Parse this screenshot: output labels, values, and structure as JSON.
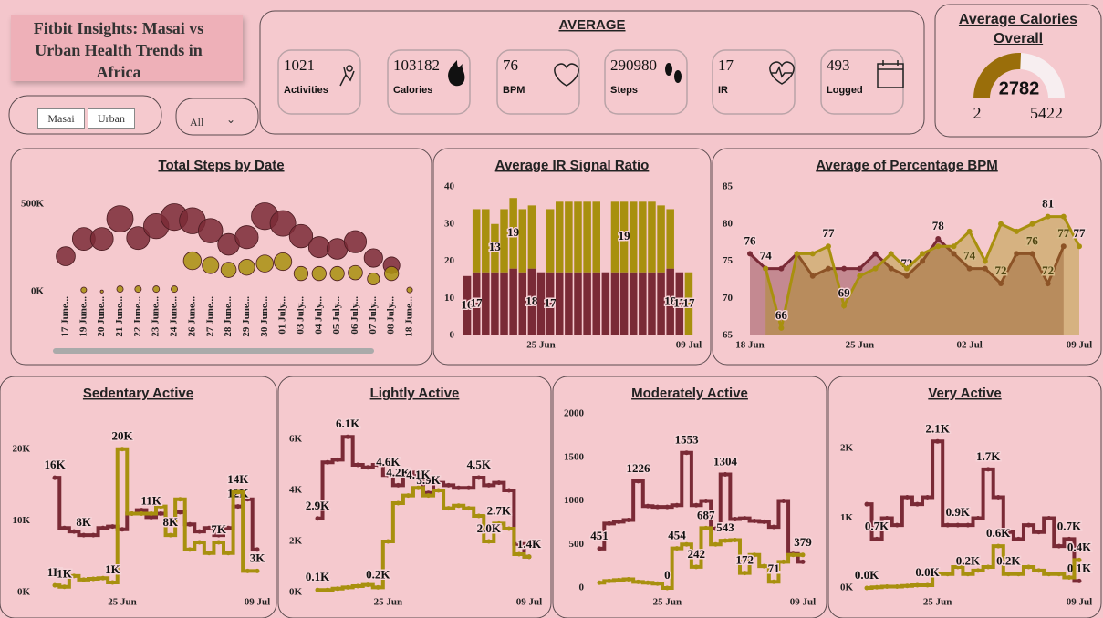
{
  "dashboard_title": "Fitbit Insights: Masai vs Urban Health Trends in Africa",
  "slicer": {
    "options": [
      "Masai",
      "Urban"
    ]
  },
  "dropdown": "All",
  "average": {
    "title": "AVERAGE",
    "kpis": [
      {
        "value": 1021,
        "label": "Activities"
      },
      {
        "value": 103182,
        "label": "Calories"
      },
      {
        "value": 76,
        "label": "BPM"
      },
      {
        "value": 290980,
        "label": "Steps"
      },
      {
        "value": 17,
        "label": "IR"
      },
      {
        "value": 493,
        "label": "Logged"
      }
    ]
  },
  "gauge": {
    "title": "Average Calories Overall",
    "value": 2782,
    "min": 2,
    "max": 5422
  },
  "chart_data": [
    {
      "type": "bubble",
      "title": "Total Steps by Date",
      "categories": [
        "17 June...",
        "19 June...",
        "20 June...",
        "21 June...",
        "22 June...",
        "23 June...",
        "24 June...",
        "26 June...",
        "27 June...",
        "28 June...",
        "29 June...",
        "30 June...",
        "01 July...",
        "03 July...",
        "04 July...",
        "05 July...",
        "06 July...",
        "07 July...",
        "08 July...",
        "18 June..."
      ],
      "series": [
        {
          "color": "#7a2a36",
          "values": [
            203000,
            302000,
            302000,
            417000,
            307000,
            375000,
            427000,
            406000,
            349000,
            271000,
            312000,
            432000,
            391000,
            318000,
            255000,
            245000,
            286000,
            193000,
            151000,
            null
          ]
        },
        {
          "color": "#a8900e",
          "values": [
            null,
            10000,
            1000,
            15000,
            15000,
            15000,
            15000,
            177000,
            151000,
            125000,
            140000,
            161000,
            172000,
            104000,
            104000,
            104000,
            109000,
            73000,
            104000,
            10000
          ]
        }
      ],
      "ylim": [
        0,
        600000
      ],
      "yticks": [
        {
          "value": 0,
          "label": "0K"
        },
        {
          "value": 500000,
          "label": "500K"
        }
      ]
    },
    {
      "type": "bar",
      "stacked": true,
      "title": "Average IR Signal Ratio",
      "categories": [
        null,
        null,
        null,
        null,
        null,
        null,
        null,
        null,
        "25 Jun",
        null,
        null,
        null,
        null,
        null,
        null,
        null,
        null,
        null,
        null,
        null,
        null,
        null,
        null,
        null,
        "09 Jul"
      ],
      "series": [
        {
          "color": "#7a2a36",
          "values": [
            16,
            17,
            17,
            17,
            17,
            18,
            17,
            18,
            17,
            17,
            17,
            17,
            17,
            17,
            17,
            17,
            17,
            17,
            17,
            17,
            17,
            17,
            18,
            17,
            0
          ],
          "value_labels": [
            "16",
            "17",
            null,
            null,
            null,
            null,
            null,
            "18",
            null,
            "17",
            null,
            null,
            null,
            null,
            null,
            null,
            null,
            null,
            null,
            null,
            null,
            null,
            "18",
            "17",
            null
          ]
        },
        {
          "color": "#a8900e",
          "values": [
            0,
            17,
            17,
            13,
            17,
            19,
            17,
            17,
            0,
            17,
            19,
            19,
            19,
            19,
            19,
            0,
            19,
            19,
            19,
            19,
            19,
            18,
            16,
            0,
            17
          ],
          "value_labels": [
            null,
            null,
            null,
            "13",
            null,
            "19",
            null,
            null,
            null,
            null,
            null,
            null,
            null,
            null,
            null,
            null,
            null,
            "19",
            null,
            null,
            null,
            null,
            null,
            null,
            "17"
          ]
        }
      ],
      "ylim": [
        0,
        40
      ],
      "yticks": [
        0,
        10,
        20,
        30,
        40
      ]
    },
    {
      "type": "line",
      "area": true,
      "title": "Average of Percentage BPM",
      "categories": [
        "18 Jun",
        null,
        null,
        null,
        null,
        null,
        null,
        "25 Jun",
        null,
        null,
        null,
        null,
        null,
        null,
        "02 Jul",
        null,
        null,
        null,
        null,
        null,
        null,
        "09 Jul"
      ],
      "series": [
        {
          "color": "#7a2a36",
          "values": [
            76,
            74,
            74,
            76,
            73,
            74,
            74,
            74,
            76,
            74,
            73,
            75,
            78,
            76,
            74,
            74,
            72,
            76,
            76,
            72,
            77,
            null
          ],
          "value_labels": [
            "76",
            null,
            null,
            null,
            null,
            null,
            null,
            null,
            null,
            null,
            "73",
            null,
            "78",
            null,
            "74",
            null,
            "72",
            null,
            "76",
            "72",
            "77",
            null
          ]
        },
        {
          "color": "#a8900e",
          "values": [
            null,
            74,
            66,
            76,
            76,
            77,
            69,
            73,
            74,
            76,
            74,
            76,
            77,
            77,
            79,
            75,
            80,
            79,
            80,
            81,
            81,
            77
          ],
          "value_labels": [
            null,
            "74",
            "66",
            null,
            null,
            "77",
            "69",
            null,
            null,
            null,
            null,
            null,
            null,
            null,
            null,
            null,
            null,
            null,
            null,
            "81",
            null,
            "77"
          ]
        }
      ],
      "ylim": [
        65,
        85
      ],
      "yticks": [
        65,
        70,
        75,
        80,
        85
      ]
    },
    {
      "type": "line",
      "step": true,
      "title": "Sedentary Active",
      "categories": [
        null,
        null,
        null,
        null,
        null,
        null,
        null,
        "25 Jun",
        null,
        null,
        null,
        null,
        null,
        null,
        null,
        null,
        null,
        null,
        null,
        null,
        null,
        "09 Jul"
      ],
      "series": [
        {
          "color": "#7a2a36",
          "values": [
            16000,
            9000,
            8500,
            8000,
            8000,
            9000,
            9200,
            8800,
            11000,
            11500,
            10500,
            11000,
            10000,
            11200,
            9500,
            8500,
            9000,
            8000,
            9000,
            12000,
            13000,
            6000
          ],
          "value_labels": [
            "16K",
            null,
            null,
            "8K",
            null,
            null,
            null,
            null,
            null,
            null,
            null,
            null,
            null,
            null,
            null,
            null,
            null,
            null,
            null,
            "12K",
            null,
            null
          ]
        },
        {
          "color": "#a8900e",
          "values": [
            1000,
            800,
            2300,
            1800,
            1900,
            2000,
            1400,
            20000,
            11000,
            11000,
            11000,
            12000,
            8000,
            13000,
            6000,
            7000,
            5500,
            7000,
            5500,
            14000,
            3000,
            3000
          ],
          "value_labels": [
            "1K",
            "1K",
            null,
            null,
            null,
            null,
            "1K",
            "20K",
            null,
            null,
            "11K",
            null,
            "8K",
            null,
            null,
            null,
            null,
            "7K",
            null,
            "14K",
            null,
            "3K"
          ]
        }
      ],
      "ylim": [
        0,
        22000
      ],
      "yticks": [
        {
          "value": 0,
          "label": "0K"
        },
        {
          "value": 10000,
          "label": "10K"
        },
        {
          "value": 20000,
          "label": "20K"
        }
      ]
    },
    {
      "type": "line",
      "step": true,
      "title": "Lightly Active",
      "categories": [
        null,
        null,
        null,
        null,
        null,
        null,
        null,
        "25 Jun",
        null,
        null,
        null,
        null,
        null,
        null,
        null,
        null,
        null,
        null,
        null,
        null,
        null,
        "09 Jul"
      ],
      "series": [
        {
          "color": "#7a2a36",
          "values": [
            2900,
            5100,
            5200,
            6100,
            5000,
            4900,
            5000,
            4600,
            4200,
            4700,
            4600,
            3900,
            4300,
            4200,
            4100,
            4100,
            4500,
            4200,
            4300,
            4000,
            1900,
            1400
          ],
          "value_labels": [
            "2.9K",
            null,
            null,
            "6.1K",
            null,
            null,
            null,
            "4.6K",
            "4.2K",
            null,
            null,
            "3.9K",
            null,
            null,
            null,
            null,
            "4.5K",
            null,
            null,
            null,
            null,
            "1.4K"
          ]
        },
        {
          "color": "#a8900e",
          "values": [
            100,
            100,
            150,
            200,
            250,
            300,
            200,
            2000,
            3500,
            3800,
            4100,
            3800,
            4000,
            3300,
            3400,
            3300,
            3000,
            2000,
            2700,
            2500,
            1500,
            1400
          ],
          "value_labels": [
            "0.1K",
            null,
            null,
            null,
            null,
            null,
            "0.2K",
            null,
            null,
            null,
            "4.1K",
            null,
            null,
            null,
            null,
            null,
            null,
            "2.0K",
            "2.7K",
            null,
            null,
            null
          ]
        }
      ],
      "ylim": [
        0,
        7000
      ],
      "yticks": [
        {
          "value": 0,
          "label": "0K"
        },
        {
          "value": 2000,
          "label": "2K"
        },
        {
          "value": 4000,
          "label": "4K"
        },
        {
          "value": 6000,
          "label": "6K"
        }
      ]
    },
    {
      "type": "line",
      "step": true,
      "title": "Moderately Active",
      "categories": [
        null,
        null,
        null,
        null,
        null,
        null,
        null,
        "25 Jun",
        null,
        null,
        null,
        null,
        null,
        null,
        null,
        null,
        null,
        null,
        null,
        null,
        null,
        "09 Jul"
      ],
      "series": [
        {
          "color": "#7a2a36",
          "values": [
            451,
            740,
            760,
            780,
            1226,
            940,
            930,
            930,
            950,
            1553,
            950,
            1000,
            680,
            1304,
            790,
            800,
            770,
            760,
            700,
            1000,
            390,
            300
          ],
          "value_labels": [
            "451",
            null,
            null,
            null,
            "1226",
            null,
            null,
            null,
            null,
            "1553",
            null,
            null,
            null,
            "1304",
            null,
            null,
            null,
            null,
            null,
            null,
            null,
            null
          ]
        },
        {
          "color": "#a8900e",
          "values": [
            60,
            80,
            90,
            100,
            70,
            60,
            50,
            0,
            454,
            500,
            242,
            687,
            500,
            543,
            550,
            172,
            380,
            250,
            71,
            300,
            380,
            379
          ],
          "value_labels": [
            null,
            null,
            null,
            null,
            null,
            null,
            null,
            "0",
            "454",
            null,
            "242",
            "687",
            null,
            "543",
            null,
            "172",
            null,
            null,
            "71",
            null,
            null,
            "379"
          ]
        }
      ],
      "ylim": [
        0,
        2000
      ],
      "yticks": [
        0,
        500,
        1000,
        1500,
        2000
      ]
    },
    {
      "type": "line",
      "step": true,
      "title": "Very Active",
      "categories": [
        null,
        null,
        null,
        null,
        null,
        null,
        null,
        "25 Jun",
        null,
        null,
        null,
        null,
        null,
        null,
        null,
        null,
        null,
        null,
        null,
        null,
        null,
        "09 Jul"
      ],
      "series": [
        {
          "color": "#7a2a36",
          "values": [
            1200,
            700,
            1000,
            900,
            1300,
            1200,
            1300,
            2100,
            900,
            900,
            900,
            1000,
            1700,
            1300,
            800,
            700,
            900,
            800,
            1000,
            600,
            700,
            100
          ],
          "value_labels": [
            null,
            "0.7K",
            null,
            null,
            null,
            null,
            null,
            "2.1K",
            null,
            "0.9K",
            null,
            null,
            "1.7K",
            null,
            null,
            null,
            null,
            null,
            null,
            null,
            "0.7K",
            "0.1K"
          ]
        },
        {
          "color": "#a8900e",
          "values": [
            0,
            10,
            20,
            20,
            30,
            40,
            40,
            200,
            200,
            300,
            200,
            250,
            300,
            600,
            200,
            200,
            300,
            250,
            200,
            200,
            150,
            400
          ],
          "value_labels": [
            "0.0K",
            null,
            null,
            null,
            null,
            null,
            "0.0K",
            null,
            null,
            null,
            "0.2K",
            null,
            null,
            "0.6K",
            "0.2K",
            null,
            null,
            null,
            null,
            null,
            null,
            "0.4K"
          ]
        }
      ],
      "ylim": [
        0,
        2300
      ],
      "yticks": [
        {
          "value": 0,
          "label": "0K"
        },
        {
          "value": 1000,
          "label": "1K"
        },
        {
          "value": 2000,
          "label": "2K"
        }
      ]
    }
  ]
}
